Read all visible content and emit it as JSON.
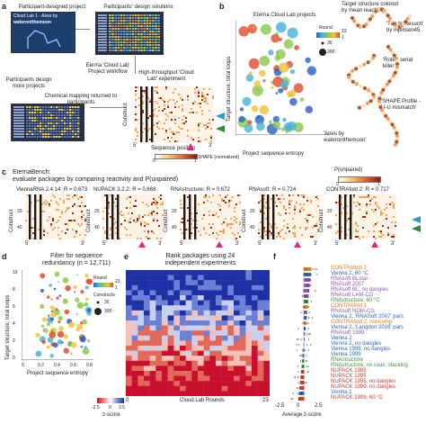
{
  "panel_a": {
    "label": "a",
    "participant_project": "Participant-designed project",
    "design_solutions": "Participants' design solutions",
    "lab_title": "Cloud Lab 1 - Aires by",
    "lab_subtitle": "waterontthemoon",
    "workflow": "Eterna 'Cloud Lab' Project workflow",
    "high_throughput": "High-throughput 'Cloud Lab' experiment",
    "participants_design_more": "Participants design more projects",
    "chemical_mapping": "Chemical mapping returned to participants",
    "ylabel": "Construct",
    "xlabel": "Sequence position",
    "x_start": "5'",
    "x_end": "3'",
    "shape_label": "SHAPE (normalized)",
    "shape_ticks": [
      "0",
      "1"
    ]
  },
  "panel_b": {
    "label": "b",
    "title": "Eterna Cloud Lab projects",
    "ylabel": "Target structure, total loops",
    "xlabel": "Project sequence entropy",
    "round_label": "Round",
    "round_ticks": [
      "23",
      "1"
    ],
    "size_ticks": [
      "30",
      "300"
    ],
    "target_colored": "Target structure colored by mean reactivity",
    "nonesuch": "'The Nonesuch' by mjensen45",
    "robot": "'Robot serial killer 1'",
    "shape_profile": "'SHAPE Profile - U-U mismatch'",
    "aires": "'Aires by waterontthemoon'"
  },
  "panel_c": {
    "label": "c",
    "heading": "EternaBench:",
    "subtitle": "evaluate packages by comparing reactivity and P(unpaired)",
    "cbar_label": "P(unpaired)",
    "cbar_ticks": [
      "0",
      "1"
    ],
    "ylabel": "Construct",
    "x_start": "5'",
    "x_end": "3'",
    "packages": [
      {
        "name": "ViennaRNA 2.4.14:",
        "r": "R = 0.673"
      },
      {
        "name": "NUPACK 3.2.2:",
        "r": "R = 0.668"
      },
      {
        "name": "RNAstructure:",
        "r": "R = 0.672"
      },
      {
        "name": "RNAsoft:",
        "r": "R = 0.724"
      },
      {
        "name": "CONTRAfold 2:",
        "r": "R = 0.717"
      }
    ]
  },
  "panel_d": {
    "label": "d",
    "title": "Filter for sequence redundancy (n = 12,711)",
    "ylabel": "Target structure, total loops",
    "xlabel": "Project sequence entropy",
    "round_label": "Round",
    "round_ticks": [
      "23",
      "1"
    ],
    "constructs_label": "Constructs",
    "size_ticks": [
      "30",
      "300"
    ],
    "yticks": [
      "10",
      "8",
      "6",
      "4",
      "2",
      "0"
    ],
    "xticks": [
      "0",
      "0.2",
      "0.4",
      "0.6",
      "0.8"
    ]
  },
  "panel_e": {
    "label": "e",
    "title": "Rank packages using 24 independent experiments",
    "xlabel": "Cloud Lab Rounds",
    "xticks": [
      "0",
      "23"
    ],
    "cbar_ticks": [
      "-2.5",
      "0",
      "2.5"
    ],
    "cbar_label": "z-score"
  },
  "panel_f": {
    "label": "f",
    "xlabel": "Average z-score",
    "xticks": [
      "-2.5",
      "0",
      "2.5"
    ],
    "rows": [
      {
        "label": "CONTRAfold 2",
        "color": "#e07b1a"
      },
      {
        "label": "Vienna 2, 60 °C",
        "color": "#2e66b0"
      },
      {
        "label": "RNAsoft BLstar",
        "color": "#8d57b5"
      },
      {
        "label": "RNAsoft 2007",
        "color": "#8d57b5"
      },
      {
        "label": "RNAsoft BL, no dangles",
        "color": "#8d57b5"
      },
      {
        "label": "RNAsoft LAM-CG",
        "color": "#8d57b5"
      },
      {
        "label": "RNAstructure, 60 °C",
        "color": "#3e8e3e"
      },
      {
        "label": "CONTRAfold 1",
        "color": "#e07b1a"
      },
      {
        "label": "RNAsoft NOM-CG",
        "color": "#8d57b5"
      },
      {
        "label": "Vienna 2, 'RNASoft 2007' pars",
        "color": "#2e66b0"
      },
      {
        "label": "CONTRAfold 2, noncomp.",
        "color": "#e07b1a"
      },
      {
        "label": "Vienna 2, 'Langdon 2018' pars",
        "color": "#2e66b0"
      },
      {
        "label": "RNAsoft 1999",
        "color": "#8d57b5"
      },
      {
        "label": "Vienna 2",
        "color": "#2e66b0"
      },
      {
        "label": "Vienna 2, no dangles",
        "color": "#2e66b0"
      },
      {
        "label": "Vienna 1999, no dangles",
        "color": "#2e66b0"
      },
      {
        "label": "Vienna 1999",
        "color": "#2e66b0"
      },
      {
        "label": "RNAstructure",
        "color": "#3e8e3e"
      },
      {
        "label": "RNAstructure, no coax. stacking",
        "color": "#3e8e3e"
      },
      {
        "label": "NUPACK 1999",
        "color": "#d43a2a"
      },
      {
        "label": "NUPACK 1995",
        "color": "#d43a2a"
      },
      {
        "label": "NUPACK 1995, no dangles",
        "color": "#d43a2a"
      },
      {
        "label": "NUPACK 1999, no dangles",
        "color": "#d43a2a"
      },
      {
        "label": "Vienna 1",
        "color": "#2e66b0"
      },
      {
        "label": "NUPACK 1999, 60 °C",
        "color": "#d43a2a"
      }
    ]
  }
}
